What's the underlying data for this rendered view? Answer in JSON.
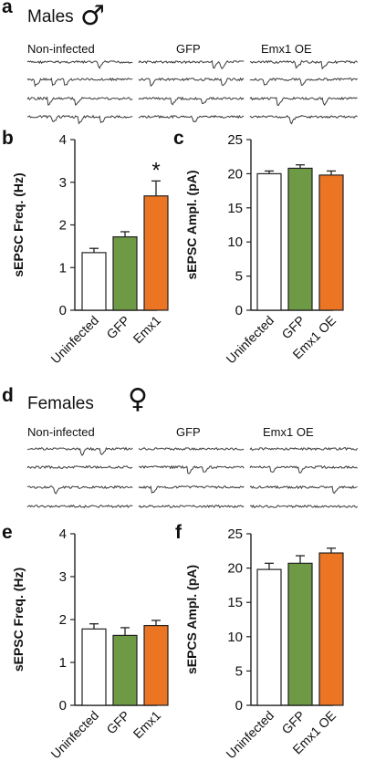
{
  "figure": {
    "panel_letters": {
      "a": "a",
      "b": "b",
      "c": "c",
      "d": "d",
      "e": "e",
      "f": "f"
    },
    "males": {
      "title": "Males",
      "symbol": "♂"
    },
    "females": {
      "title": "Females",
      "symbol": "♀"
    },
    "trace_groups": [
      "Non-infected",
      "GFP",
      "Emx1 OE"
    ]
  },
  "colors": {
    "uninfected": "#ffffff",
    "gfp": "#6e9a45",
    "emx1": "#ec7524",
    "trace": "#3a3a3a"
  },
  "chart_data": [
    {
      "id": "b",
      "type": "bar",
      "categories": [
        "Uninfected",
        "GFP",
        "Emx1"
      ],
      "values": [
        1.35,
        1.72,
        2.68
      ],
      "errors": [
        0.1,
        0.12,
        0.35
      ],
      "significance": [
        "",
        "",
        "*"
      ],
      "ylabel": "sEPSC Freq. (Hz)",
      "ylim": [
        0,
        4
      ],
      "yticks": [
        0,
        1,
        2,
        3,
        4
      ]
    },
    {
      "id": "c",
      "type": "bar",
      "categories": [
        "Uninfected",
        "GFP",
        "Emx1 OE"
      ],
      "values": [
        20.0,
        20.8,
        19.8
      ],
      "errors": [
        0.4,
        0.5,
        0.6
      ],
      "significance": [
        "",
        "",
        ""
      ],
      "ylabel": "sEPSC Ampl. (pA)",
      "ylim": [
        0,
        25
      ],
      "yticks": [
        0,
        5,
        10,
        15,
        20,
        25
      ]
    },
    {
      "id": "e",
      "type": "bar",
      "categories": [
        "Uninfected",
        "GFP",
        "Emx1"
      ],
      "values": [
        1.78,
        1.63,
        1.86
      ],
      "errors": [
        0.12,
        0.18,
        0.12
      ],
      "significance": [
        "",
        "",
        ""
      ],
      "ylabel": "sEPSC Freq. (Hz)",
      "ylim": [
        0,
        4
      ],
      "yticks": [
        0,
        1,
        2,
        3,
        4
      ]
    },
    {
      "id": "f",
      "type": "bar",
      "categories": [
        "Uninfected",
        "GFP",
        "Emx1 OE"
      ],
      "values": [
        19.8,
        20.7,
        22.2
      ],
      "errors": [
        0.9,
        1.1,
        0.7
      ],
      "significance": [
        "",
        "",
        ""
      ],
      "ylabel": "sEPCS Ampl. (pA)",
      "ylim": [
        0,
        25
      ],
      "yticks": [
        0,
        5,
        10,
        15,
        20,
        25
      ]
    }
  ]
}
